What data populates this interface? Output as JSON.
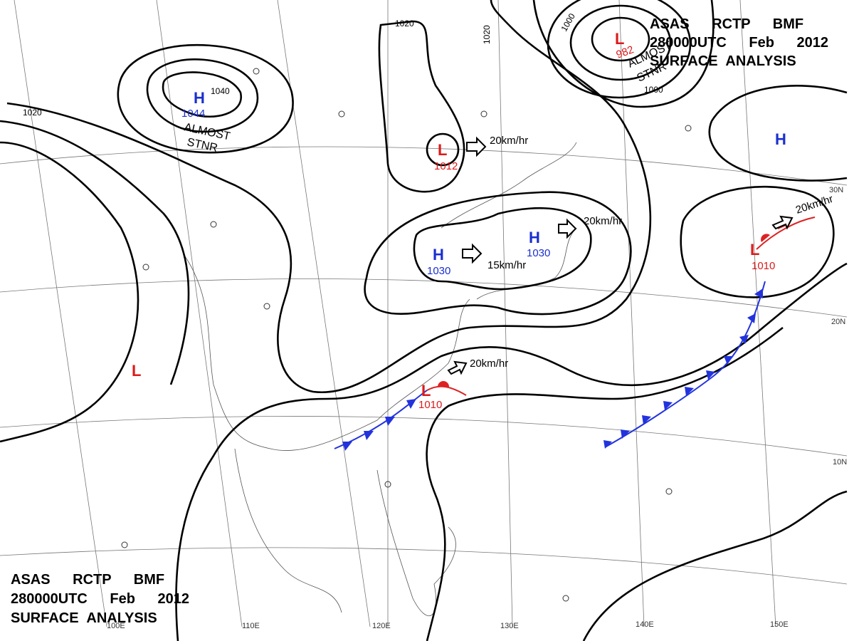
{
  "header_top": [
    "ASAS RCTP BMF",
    "280000UTC Feb 2012",
    "SURFACE ANALYSIS"
  ],
  "header_bottom": [
    "ASAS RCTP BMF",
    "280000UTC Feb 2012",
    "SURFACE ANALYSIS"
  ],
  "centers": [
    {
      "symbol": "H",
      "pressure": "1044"
    },
    {
      "symbol": "L",
      "pressure": "1012"
    },
    {
      "symbol": "H",
      "pressure": "1030"
    },
    {
      "symbol": "H",
      "pressure": "1030"
    },
    {
      "symbol": "L",
      "pressure": "982"
    },
    {
      "symbol": "H"
    },
    {
      "symbol": "L",
      "pressure": "1010"
    },
    {
      "symbol": "L",
      "pressure": "1010"
    },
    {
      "symbol": "L"
    }
  ],
  "notes": [
    "ALMOST",
    "STNR",
    "ALMOST",
    "STNR"
  ],
  "motions": [
    "20km/hr",
    "20km/hr",
    "15km/hr",
    "20km/hr",
    "20km/hr"
  ],
  "isobar_labels": [
    "1020",
    "1040",
    "1020",
    "1020",
    "1000",
    "1000"
  ],
  "lat_labels": [
    "30N",
    "20N",
    "10N"
  ],
  "lon_labels": [
    "100E",
    "110E",
    "120E",
    "130E",
    "140E",
    "150E"
  ]
}
